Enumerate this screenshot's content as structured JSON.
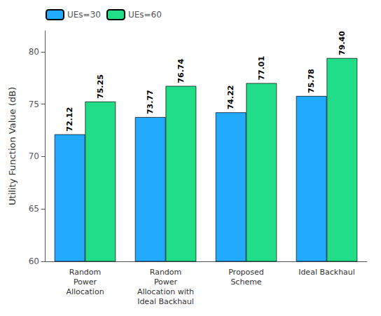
{
  "chart_data": {
    "type": "bar",
    "categories": [
      "Random\nPower\nAllocation",
      "Random\nPower\nAllocation with\nIdeal Backhaul",
      "Proposed\nScheme",
      "Ideal Backhaul"
    ],
    "series": [
      {
        "name": "UEs=30",
        "color": "#22aaff",
        "values": [
          72.12,
          73.77,
          74.22,
          75.78
        ],
        "value_labels": [
          "72.12",
          "73.77",
          "74.22",
          "75.78"
        ]
      },
      {
        "name": "UEs=60",
        "color": "#22dd88",
        "values": [
          75.25,
          76.74,
          77.01,
          79.4
        ],
        "value_labels": [
          "75.25",
          "76.74",
          "77.01",
          "79.40"
        ]
      }
    ],
    "ylabel": "Utility Function Value (dB)",
    "ylim": [
      60,
      82
    ],
    "yticks": [
      60,
      65,
      70,
      75,
      80
    ],
    "data_labels": true,
    "legend": "upper left",
    "grid": false
  }
}
